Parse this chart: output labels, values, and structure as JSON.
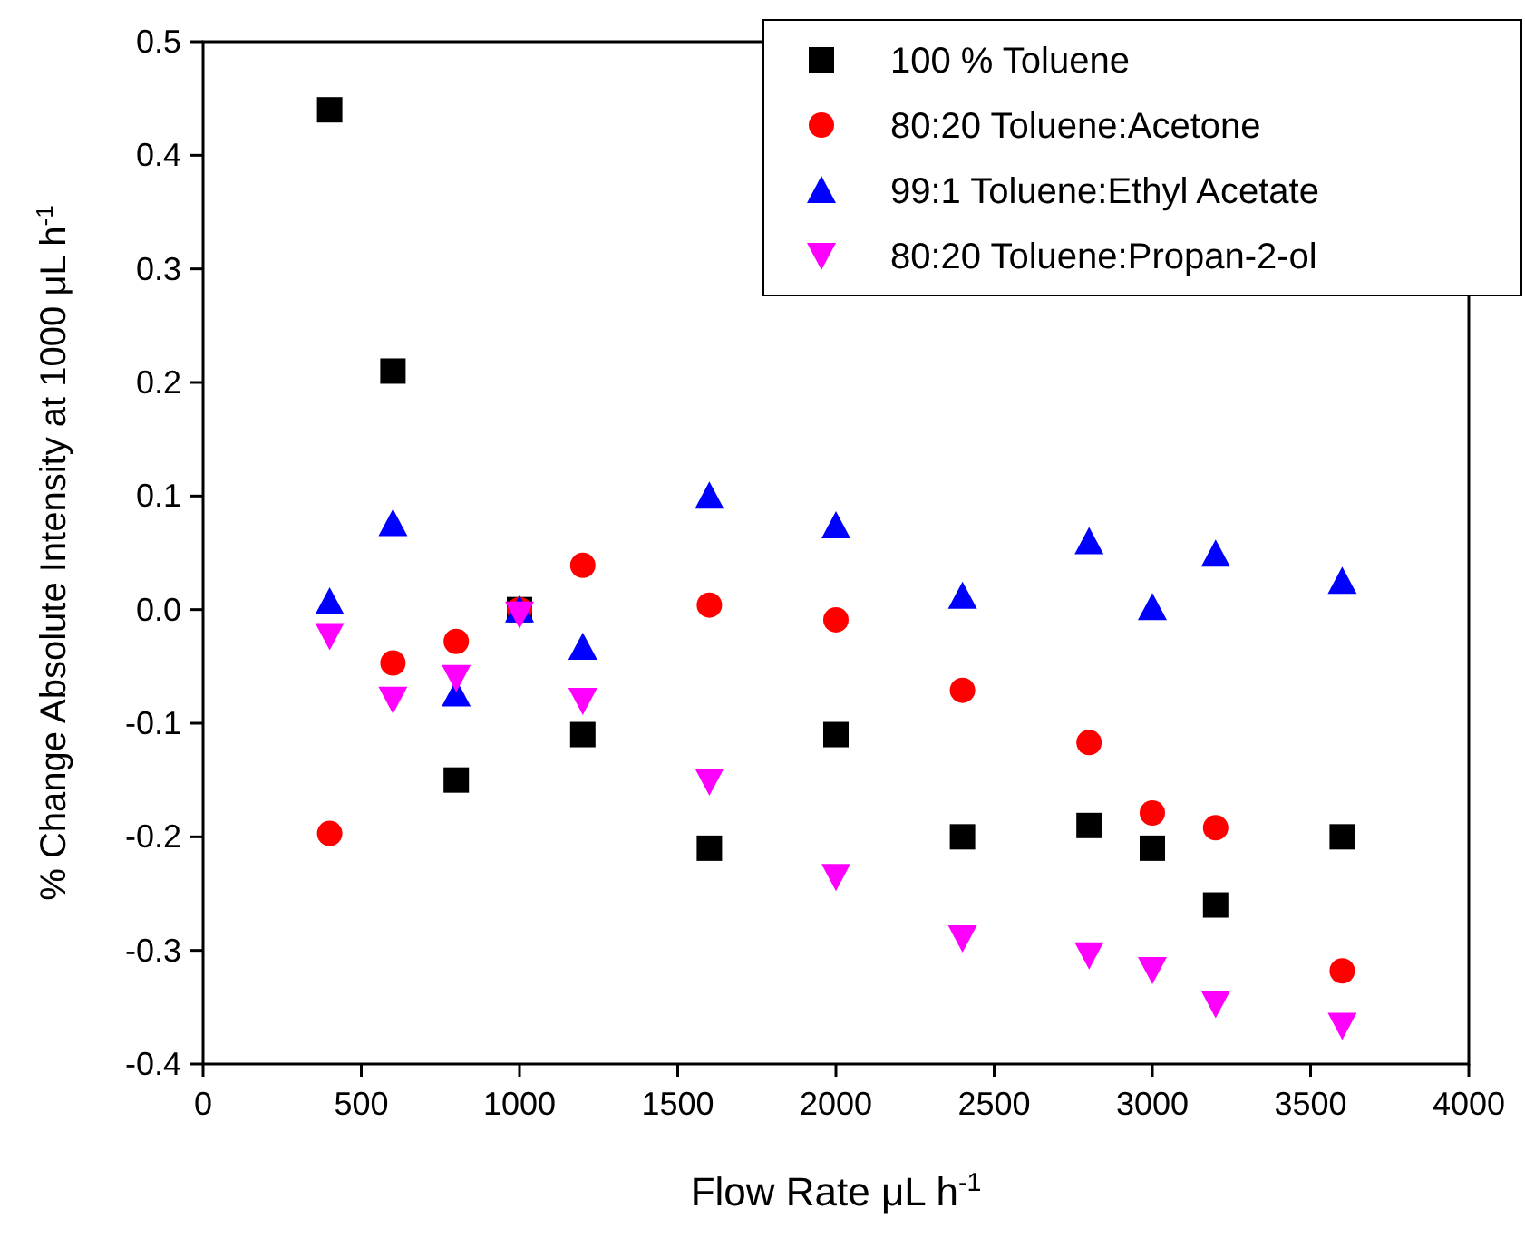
{
  "chart_data": {
    "type": "scatter",
    "xlabel": "Flow Rate μL h$^{-1}$",
    "ylabel": "% Change Absolute Intensity at 1000 μL h$^{-1}$",
    "x": [
      400,
      600,
      800,
      1000,
      1200,
      1600,
      2000,
      2400,
      2800,
      3000,
      3200,
      3600
    ],
    "xlim": [
      0,
      4000
    ],
    "xticks": [
      0,
      500,
      1000,
      1500,
      2000,
      2500,
      3000,
      3500,
      4000
    ],
    "ylim": [
      -0.4,
      0.5
    ],
    "yticks": [
      {
        "value": -0.4,
        "label": "-0.4"
      },
      {
        "value": -0.3,
        "label": "-0.3"
      },
      {
        "value": -0.2,
        "label": "-0.2"
      },
      {
        "value": -0.1,
        "label": "-0.1"
      },
      {
        "value": 0,
        "label": "0.0"
      },
      {
        "value": 0.1,
        "label": "0.1"
      },
      {
        "value": 0.2,
        "label": "0.2"
      },
      {
        "value": 0.3,
        "label": "0.3"
      },
      {
        "value": 0.4,
        "label": "0.4"
      },
      {
        "value": 0.5,
        "label": "0.5"
      }
    ],
    "grid": false,
    "legend": "top right",
    "series": [
      {
        "name": "100 % Toluene",
        "color": "#000000",
        "marker": "square",
        "values": [
          0.44,
          0.21,
          -0.15,
          0,
          -0.11,
          -0.21,
          -0.11,
          -0.2,
          -0.19,
          -0.21,
          -0.26,
          -0.2
        ]
      },
      {
        "name": "80:20 Toluene:Acetone",
        "color": "#ff0000",
        "marker": "circle",
        "values": [
          -0.197,
          -0.047,
          -0.028,
          0,
          0.039,
          0.004,
          -0.009,
          -0.071,
          -0.117,
          -0.179,
          -0.192,
          -0.318
        ]
      },
      {
        "name": "99:1 Toluene:Ethyl Acetate",
        "color": "#0000ff",
        "marker": "triangle",
        "values": [
          0.007,
          0.076,
          -0.074,
          0,
          -0.033,
          0.1,
          0.074,
          0.012,
          0.06,
          0.002,
          0.049,
          0.025
        ]
      },
      {
        "name": "80:20 Toluene:Propan-2-ol",
        "color": "#ff00ff",
        "marker": "triangle-down",
        "values": [
          -0.023,
          -0.079,
          -0.06,
          -0.004,
          -0.08,
          -0.151,
          -0.235,
          -0.289,
          -0.304,
          -0.317,
          -0.347,
          -0.366
        ]
      }
    ]
  }
}
